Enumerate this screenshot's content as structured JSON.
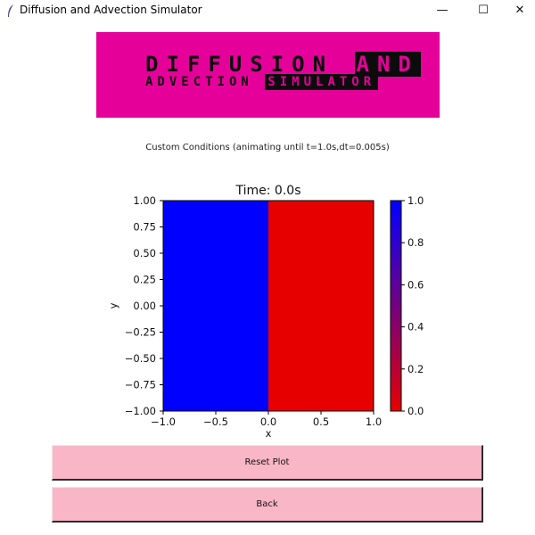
{
  "window": {
    "title": "Diffusion and Advection Simulator",
    "minimize_glyph": "—",
    "maximize_glyph": "☐",
    "close_glyph": "✕"
  },
  "logo": {
    "line1_plain": "DIFFUSION ",
    "line1_highlight": "AND",
    "line2_plain": "ADVECTION ",
    "line2_highlight": "SIMULATOR",
    "background_color": "#e6009a"
  },
  "subtitle": "Custom Conditions (animating until t=1.0s,dt=0.005s)",
  "chart_data": {
    "type": "heatmap",
    "title": "Time: 0.0s",
    "xlabel": "x",
    "ylabel": "y",
    "xlim": [
      -1.0,
      1.0
    ],
    "ylim": [
      -1.0,
      1.0
    ],
    "x_ticks": [
      "−1.0",
      "−0.5",
      "0.0",
      "0.5",
      "1.0"
    ],
    "y_ticks": [
      "1.00",
      "0.75",
      "0.50",
      "0.25",
      "0.00",
      "−0.25",
      "−0.50",
      "−0.75",
      "−1.00"
    ],
    "regions": [
      {
        "x_range": [
          -1.0,
          0.0
        ],
        "value": 1.0
      },
      {
        "x_range": [
          0.0,
          1.0
        ],
        "value": 0.0
      }
    ],
    "colorbar": {
      "range": [
        0.0,
        1.0
      ],
      "ticks": [
        "0.0",
        "0.2",
        "0.4",
        "0.6",
        "0.8",
        "1.0"
      ],
      "low_color": "#e60000",
      "high_color": "#0000ff"
    }
  },
  "buttons": {
    "reset_label": "Reset Plot",
    "back_label": "Back"
  }
}
